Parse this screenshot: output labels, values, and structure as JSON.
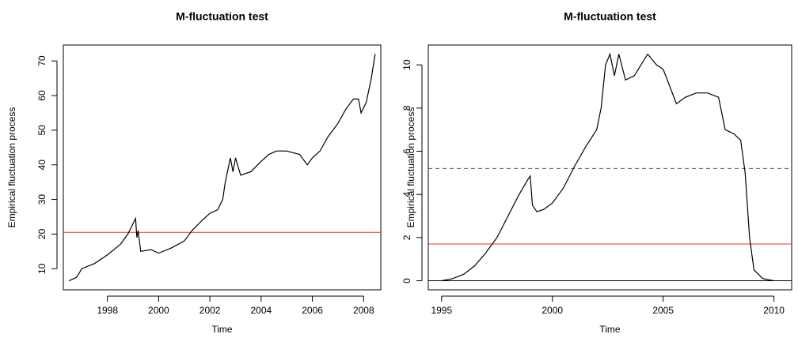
{
  "chart_data": [
    {
      "type": "line",
      "title": "M-fluctuation test",
      "x_label": "Time",
      "y_label": "Empirical fluctuation process",
      "x": [
        1996.5,
        1996.8,
        1997.0,
        1997.5,
        1998.0,
        1998.5,
        1998.8,
        1999.0,
        1999.1,
        1999.15,
        1999.2,
        1999.3,
        1999.7,
        2000.0,
        2000.5,
        2001.0,
        2001.3,
        2001.7,
        2002.0,
        2002.3,
        2002.5,
        2002.6,
        2002.8,
        2002.9,
        2003.0,
        2003.2,
        2003.6,
        2004.0,
        2004.3,
        2004.6,
        2005.0,
        2005.5,
        2005.8,
        2006.0,
        2006.3,
        2006.6,
        2007.0,
        2007.3,
        2007.6,
        2007.8,
        2007.9,
        2008.1,
        2008.3,
        2008.45
      ],
      "values": [
        6.5,
        7.5,
        10,
        11.5,
        14,
        17,
        20,
        23,
        24.5,
        19,
        21,
        15,
        15.5,
        14.5,
        16,
        18,
        21,
        24,
        26,
        27,
        30,
        35,
        42,
        38,
        42,
        37,
        38,
        41,
        43,
        44,
        44,
        43,
        40,
        42,
        44,
        48,
        52,
        56,
        59,
        59,
        55,
        58,
        65,
        72
      ],
      "color": "#000000",
      "hlines": [
        {
          "value": 20.5,
          "color": "#e03030",
          "style": "solid"
        }
      ],
      "xlim": [
        1996.28,
        2008.67
      ],
      "ylim": [
        3.9,
        74.6
      ],
      "xticks": [
        1998,
        2000,
        2002,
        2004,
        2006,
        2008
      ],
      "yticks": [
        10,
        20,
        30,
        40,
        50,
        60,
        70
      ]
    },
    {
      "type": "line",
      "title": "M-fluctuation test",
      "x_label": "Time",
      "y_label": "Empirical fluctuation process",
      "x": [
        1995.0,
        1995.5,
        1996.0,
        1996.5,
        1997.0,
        1997.5,
        1998.0,
        1998.5,
        1998.9,
        1999.0,
        1999.1,
        1999.3,
        1999.6,
        2000.0,
        2000.5,
        2001.0,
        2001.5,
        2002.0,
        2002.2,
        2002.4,
        2002.6,
        2002.8,
        2003.0,
        2003.3,
        2003.7,
        2004.0,
        2004.3,
        2004.7,
        2005.0,
        2005.3,
        2005.6,
        2006.0,
        2006.5,
        2007.0,
        2007.5,
        2007.8,
        2008.2,
        2008.5,
        2008.7,
        2008.9,
        2009.1,
        2009.5,
        2010.0
      ],
      "values": [
        0,
        0.1,
        0.3,
        0.7,
        1.3,
        2.0,
        3.0,
        4.0,
        4.7,
        4.85,
        3.5,
        3.2,
        3.3,
        3.6,
        4.3,
        5.3,
        6.2,
        7.0,
        8.0,
        10.0,
        10.5,
        9.5,
        10.5,
        9.3,
        9.5,
        10.0,
        10.5,
        10.0,
        9.8,
        9.0,
        8.2,
        8.5,
        8.7,
        8.7,
        8.5,
        7.0,
        6.8,
        6.5,
        5.0,
        2.0,
        0.5,
        0.1,
        0
      ],
      "color": "#000000",
      "hlines": [
        {
          "value": 1.7,
          "color": "#e03030",
          "style": "solid"
        },
        {
          "value": 5.2,
          "color": "#555555",
          "style": "dashed"
        },
        {
          "value": 0,
          "color": "#000000",
          "style": "solid"
        }
      ],
      "xlim": [
        1994.4,
        2010.8
      ],
      "ylim": [
        -0.42,
        10.92
      ],
      "xticks": [
        1995,
        2000,
        2005,
        2010
      ],
      "yticks": [
        0,
        2,
        4,
        6,
        8,
        10
      ]
    }
  ]
}
